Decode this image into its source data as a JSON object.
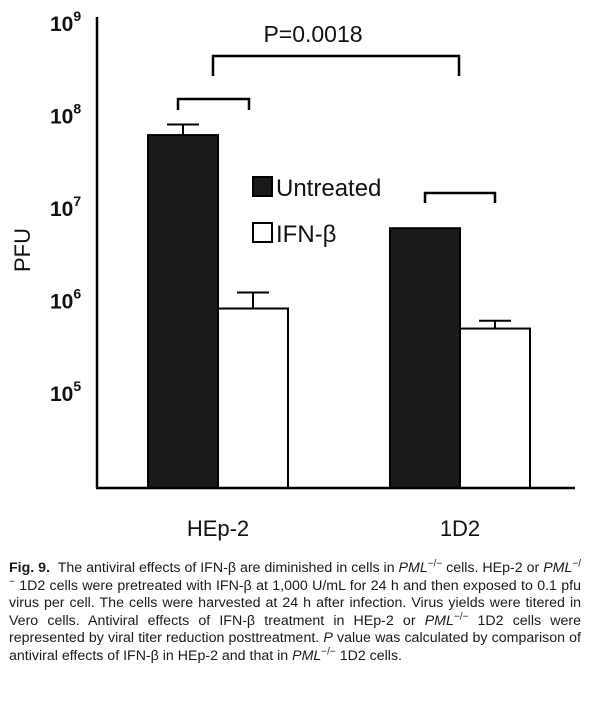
{
  "chart_data": {
    "type": "bar",
    "log_scale": true,
    "ylabel": "PFU",
    "ylim": [
      100000,
      1000000000
    ],
    "yticks": [
      {
        "base": "10",
        "exp": "9",
        "value": 1000000000
      },
      {
        "base": "10",
        "exp": "8",
        "value": 100000000
      },
      {
        "base": "10",
        "exp": "7",
        "value": 10000000
      },
      {
        "base": "10",
        "exp": "6",
        "value": 1000000
      },
      {
        "base": "10",
        "exp": "5",
        "value": 100000
      }
    ],
    "categories": [
      "HEp-2",
      "1D2"
    ],
    "series": [
      {
        "name": "Untreated",
        "color": "#1a1a1a",
        "values": [
          63000000,
          6200000
        ],
        "errors": [
          82000000,
          null
        ]
      },
      {
        "name": "IFN-β",
        "color": "#ffffff",
        "values": [
          840000,
          510000
        ],
        "errors": [
          1250000,
          620000
        ]
      }
    ],
    "legend_placement": "center",
    "annotations": {
      "pvalue": "P=0.0018"
    }
  },
  "caption": {
    "fig_label": "Fig. 9.",
    "segments": [
      {
        "t": "The antiviral effects of IFN-β are diminished in cells in ",
        "i": false
      },
      {
        "t": "PML",
        "i": true
      },
      {
        "t": "−/−",
        "i": false,
        "sup": true
      },
      {
        "t": " cells. HEp-2 or ",
        "i": false
      },
      {
        "t": "PML",
        "i": true
      },
      {
        "t": "−/−",
        "i": false,
        "sup": true
      },
      {
        "t": " 1D2 cells were pretreated with IFN-β at 1,000 U/mL for 24 h and then exposed to 0.1 pfu virus per cell. The cells were harvested at 24 h after infection. Virus yields were titered in Vero cells. Antiviral effects of IFN-β treatment in HEp-2 or ",
        "i": false
      },
      {
        "t": "PML",
        "i": true
      },
      {
        "t": "−/−",
        "i": false,
        "sup": true
      },
      {
        "t": " 1D2 cells were represented by viral titer reduction posttreatment. ",
        "i": false
      },
      {
        "t": "P",
        "i": true
      },
      {
        "t": " value was calculated by comparison of antiviral effects of IFN-β in HEp-2 and that in ",
        "i": false
      },
      {
        "t": "PML",
        "i": true
      },
      {
        "t": "−/−",
        "i": false,
        "sup": true
      },
      {
        "t": " 1D2 cells.",
        "i": false
      }
    ]
  }
}
